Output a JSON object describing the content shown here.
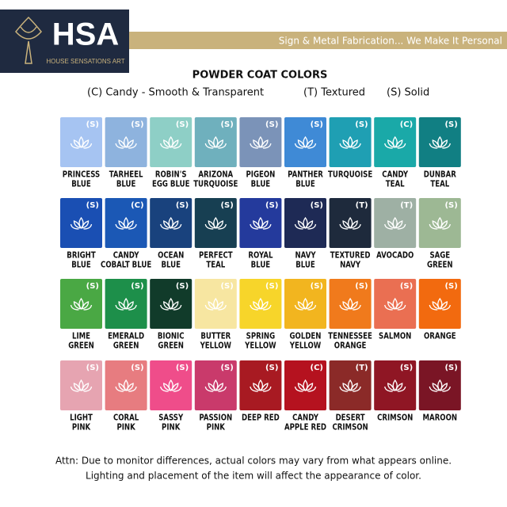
{
  "header": {
    "logo": "HSA",
    "logo_subtitle": "HOUSE SENSATIONS ART",
    "tagline": "Sign & Metal Fabrication... We Make It Personal"
  },
  "title": "POWDER COAT COLORS",
  "legend": [
    "(C) Candy - Smooth & Transparent",
    "(T) Textured",
    "(S) Solid"
  ],
  "swatches": [
    [
      {
        "code": "(S)",
        "name": [
          "PRINCESS",
          "BLUE"
        ],
        "color": "#a6c4f2"
      },
      {
        "code": "(S)",
        "name": [
          "TARHEEL",
          "BLUE"
        ],
        "color": "#8eb3de"
      },
      {
        "code": "(S)",
        "name": [
          "ROBIN'S",
          "EGG BLUE"
        ],
        "color": "#8ecfc6"
      },
      {
        "code": "(S)",
        "name": [
          "ARIZONA",
          "TURQUOISE"
        ],
        "color": "#6fb0bd"
      },
      {
        "code": "(S)",
        "name": [
          "PIGEON",
          "BLUE"
        ],
        "color": "#7b93b8"
      },
      {
        "code": "(S)",
        "name": [
          "PANTHER",
          "BLUE"
        ],
        "color": "#3f8ad6"
      },
      {
        "code": "(S)",
        "name": [
          "TURQUOISE"
        ],
        "color": "#1f9fb3"
      },
      {
        "code": "(C)",
        "name": [
          "CANDY",
          "TEAL"
        ],
        "color": "#1aa9a8"
      },
      {
        "code": "(S)",
        "name": [
          "DUNBAR",
          "TEAL"
        ],
        "color": "#117f83"
      }
    ],
    [
      {
        "code": "(S)",
        "name": [
          "BRIGHT",
          "BLUE"
        ],
        "color": "#1a4fb3"
      },
      {
        "code": "(C)",
        "name": [
          "CANDY",
          "COBALT BLUE"
        ],
        "color": "#1b58b5"
      },
      {
        "code": "(S)",
        "name": [
          "OCEAN",
          "BLUE"
        ],
        "color": "#19427d"
      },
      {
        "code": "(S)",
        "name": [
          "PERFECT",
          "TEAL"
        ],
        "color": "#173f52"
      },
      {
        "code": "(S)",
        "name": [
          "ROYAL",
          "BLUE"
        ],
        "color": "#243a9c"
      },
      {
        "code": "(S)",
        "name": [
          "NAVY",
          "BLUE"
        ],
        "color": "#1e2a55"
      },
      {
        "code": "(T)",
        "name": [
          "TEXTURED",
          "NAVY"
        ],
        "color": "#1e2a3c"
      },
      {
        "code": "(T)",
        "name": [
          "AVOCADO"
        ],
        "color": "#9eb0a4"
      },
      {
        "code": "(S)",
        "name": [
          "SAGE",
          "GREEN"
        ],
        "color": "#9db894"
      }
    ],
    [
      {
        "code": "(S)",
        "name": [
          "LIME",
          "GREEN"
        ],
        "color": "#4aa844"
      },
      {
        "code": "(S)",
        "name": [
          "EMERALD",
          "GREEN"
        ],
        "color": "#1d8f4a"
      },
      {
        "code": "(S)",
        "name": [
          "BIONIC",
          "GREEN"
        ],
        "color": "#113b2a"
      },
      {
        "code": "(S)",
        "name": [
          "BUTTER",
          "YELLOW"
        ],
        "color": "#f7e6a1"
      },
      {
        "code": "(S)",
        "name": [
          "SPRING",
          "YELLOW"
        ],
        "color": "#f7d52a"
      },
      {
        "code": "(S)",
        "name": [
          "GOLDEN",
          "YELLOW"
        ],
        "color": "#f2b51f"
      },
      {
        "code": "(S)",
        "name": [
          "TENNESSEE",
          "ORANGE"
        ],
        "color": "#f07a1c"
      },
      {
        "code": "(S)",
        "name": [
          "SALMON"
        ],
        "color": "#ea6f52"
      },
      {
        "code": "(S)",
        "name": [
          "ORANGE"
        ],
        "color": "#f26a0f"
      }
    ],
    [
      {
        "code": "(S)",
        "name": [
          "LIGHT",
          "PINK"
        ],
        "color": "#e6a4b1"
      },
      {
        "code": "(S)",
        "name": [
          "CORAL",
          "PINK"
        ],
        "color": "#e77c80"
      },
      {
        "code": "(S)",
        "name": [
          "SASSY",
          "PINK"
        ],
        "color": "#ef4d8a"
      },
      {
        "code": "(S)",
        "name": [
          "PASSION",
          "PINK"
        ],
        "color": "#c93a6b"
      },
      {
        "code": "(S)",
        "name": [
          "DEEP RED"
        ],
        "color": "#a81a22"
      },
      {
        "code": "(C)",
        "name": [
          "CANDY",
          "APPLE RED"
        ],
        "color": "#b5121f"
      },
      {
        "code": "(T)",
        "name": [
          "DESERT",
          "CRIMSON"
        ],
        "color": "#8b2a28"
      },
      {
        "code": "(S)",
        "name": [
          "CRIMSON"
        ],
        "color": "#8f1624"
      },
      {
        "code": "(S)",
        "name": [
          "MAROON"
        ],
        "color": "#7a1525"
      }
    ]
  ],
  "footer": [
    "Attn: Due to monitor differences, actual colors may vary from what appears online.",
    "Lighting and placement of the item will affect the appearance of color."
  ]
}
